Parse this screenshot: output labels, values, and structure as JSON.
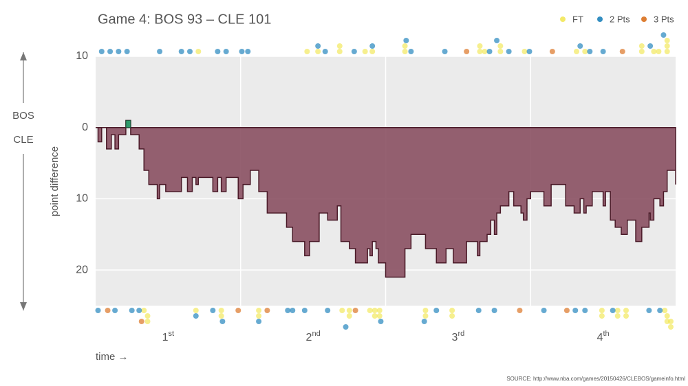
{
  "chart_data": {
    "type": "step-area",
    "title": "Game 4: BOS 93  –  CLE 101",
    "y_label": "point difference",
    "x_label": "time →",
    "source": "SOURCE: http://www.nba.com/games/20150426/CLEBOS/gameinfo.html",
    "quarters": [
      [
        "1",
        "st"
      ],
      [
        "2",
        "nd"
      ],
      [
        "3",
        "rd"
      ],
      [
        "4",
        "th"
      ]
    ],
    "xlim": [
      0,
      48
    ],
    "ylim": [
      -25,
      10
    ],
    "yticks": [
      10,
      0,
      {
        "value": -10,
        "label": "10"
      },
      {
        "value": -20,
        "label": "20"
      }
    ],
    "color": "#8a5062",
    "lead_color": "#2e9a6a",
    "x": [
      0,
      0.2,
      0.5,
      0.9,
      1.3,
      1.6,
      1.9,
      2.5,
      2.9,
      3.6,
      4.0,
      4.4,
      5.1,
      5.3,
      5.8,
      7.1,
      7.6,
      8.0,
      8.3,
      8.5,
      9.7,
      10.1,
      10.4,
      10.8,
      11.8,
      12.2,
      12.8,
      13.5,
      14.2,
      15.8,
      16.3,
      17.3,
      17.7,
      18.5,
      19.2,
      20.0,
      20.3,
      21.0,
      21.5,
      22.5,
      22.7,
      22.9,
      23.2,
      23.4,
      24.0,
      25.6,
      26.1,
      27.3,
      28.2,
      29.0,
      29.6,
      30.7,
      31.6,
      31.8,
      32.4,
      32.7,
      33.0,
      33.2,
      33.5,
      34.2,
      34.6,
      35.2,
      35.4,
      35.7,
      36.0,
      37.1,
      37.7,
      38.9,
      39.6,
      40.1,
      40.4,
      40.6,
      41.1,
      42.0,
      42.2,
      42.6,
      43.0,
      43.5,
      44.0,
      44.7,
      45.2,
      45.8,
      45.9,
      46.2,
      46.7,
      47.0,
      47.3,
      48
    ],
    "values": [
      0,
      -2,
      0,
      -3,
      -1,
      -3,
      -1,
      1,
      -1,
      -3,
      -6,
      -8,
      -10,
      -8,
      -9,
      -7,
      -9,
      -7,
      -8,
      -7,
      -9,
      -7,
      -9,
      -7,
      -10,
      -8,
      -6,
      -9,
      -12,
      -14,
      -16,
      -18,
      -16,
      -12,
      -13,
      -11,
      -16,
      -17,
      -19,
      -17,
      -18,
      -16,
      -17,
      -19,
      -21,
      -17,
      -15,
      -17,
      -19,
      -17,
      -19,
      -16,
      -18,
      -16,
      -15,
      -13,
      -15,
      -12,
      -11,
      -9,
      -11,
      -12,
      -13,
      -10,
      -9,
      -11,
      -8,
      -11,
      -12,
      -10,
      -12,
      -11,
      -9,
      -11,
      -9,
      -13,
      -14,
      -15,
      -13,
      -16,
      -14,
      -12,
      -13,
      -10,
      -11,
      -9,
      -6,
      -8
    ],
    "legend": [
      {
        "name": "FT",
        "color": "#f0e442"
      },
      {
        "name": "2 Pts",
        "color": "#0072b2"
      },
      {
        "name": "3 Pts",
        "color": "#d55e00"
      }
    ],
    "events": [
      {
        "team": "BOS",
        "times": [
          [
            8.5,
            17.5,
            18.4,
            20.2,
            20.2,
            22.3,
            22.9,
            25.6,
            25.6,
            31.8,
            31.8,
            32.2,
            33.5,
            33.5,
            35.5,
            39.8,
            40.5,
            45.2,
            45.2,
            46.2,
            46.6,
            47.3,
            47.3,
            47.3
          ],
          [
            0.5,
            1.2,
            1.9,
            2.6,
            5.3,
            7.1,
            7.8,
            10.1,
            10.8,
            12.1,
            12.6,
            18.4,
            19.0,
            21.4,
            22.9,
            25.7,
            26.1,
            28.9,
            32.6,
            33.2,
            34.2,
            35.9,
            40.1,
            40.9,
            42.0,
            45.9,
            47.0
          ],
          [
            30.7,
            37.8,
            43.6
          ]
        ]
      },
      {
        "team": "CLE",
        "times": [
          [
            4.0,
            4.3,
            4.3,
            8.3,
            10.4,
            10.4,
            13.5,
            13.5,
            20.4,
            21.0,
            21.0,
            22.7,
            23.1,
            23.1,
            23.5,
            23.5,
            27.3,
            27.3,
            29.5,
            29.5,
            41.9,
            41.9,
            43.2,
            43.2,
            43.9,
            43.9,
            47.1,
            47.3,
            47.3,
            47.6,
            47.6
          ],
          [
            0.2,
            1.6,
            3.0,
            3.6,
            8.3,
            9.7,
            10.5,
            13.5,
            15.9,
            16.3,
            17.3,
            19.2,
            20.7,
            23.6,
            27.2,
            28.2,
            31.7,
            33.0,
            37.1,
            39.7,
            40.5,
            42.8,
            45.8,
            46.7
          ],
          [
            1.0,
            3.8,
            11.8,
            14.2,
            21.5,
            35.1,
            39.0
          ]
        ]
      }
    ]
  }
}
